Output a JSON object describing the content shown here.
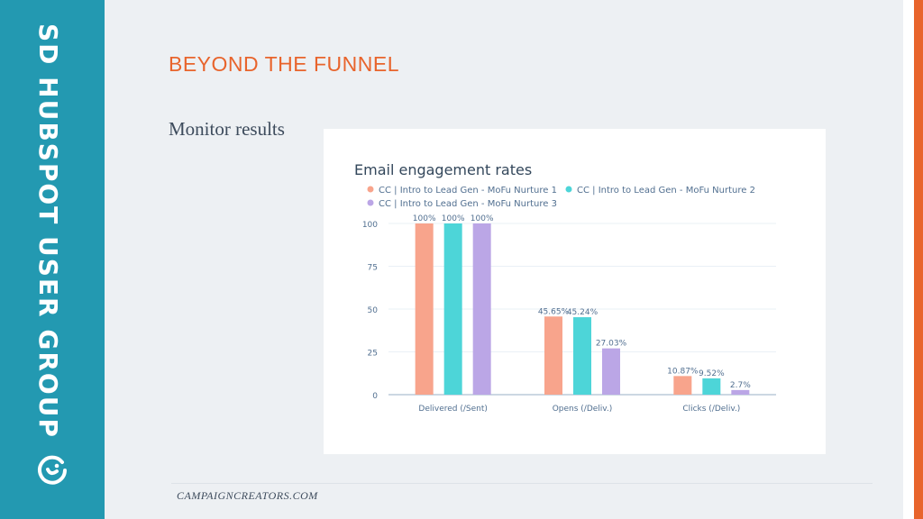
{
  "sidebar": {
    "vertical_title": "SD HUBSPOT USER GROUP"
  },
  "slide": {
    "title": "BEYOND THE FUNNEL",
    "subtitle": "Monitor results",
    "footer": "CAMPAIGNCREATORS.COM"
  },
  "colors": {
    "accent": "#e8642c",
    "sidebar": "#2399b1",
    "series1": "#f8a48c",
    "series2": "#4dd5d8",
    "series3": "#bba6e6"
  },
  "chart_data": {
    "type": "bar",
    "title": "Email engagement rates",
    "categories": [
      "Delivered (/Sent)",
      "Opens (/Deliv.)",
      "Clicks (/Deliv.)"
    ],
    "ylim": [
      0,
      100
    ],
    "yticks": [
      0,
      25,
      50,
      75,
      100
    ],
    "grid": true,
    "legend_position": "top-left",
    "series": [
      {
        "name": "CC | Intro to Lead Gen - MoFu Nurture 1",
        "values": [
          100,
          45.65,
          10.87
        ],
        "labels": [
          "100%",
          "45.65%",
          "10.87%"
        ]
      },
      {
        "name": "CC | Intro to Lead Gen - MoFu Nurture 2",
        "values": [
          100,
          45.24,
          9.52
        ],
        "labels": [
          "100%",
          "45.24%",
          "9.52%"
        ]
      },
      {
        "name": "CC | Intro to Lead Gen - MoFu Nurture 3",
        "values": [
          100,
          27.03,
          2.7
        ],
        "labels": [
          "100%",
          "27.03%",
          "2.7%"
        ]
      }
    ]
  }
}
